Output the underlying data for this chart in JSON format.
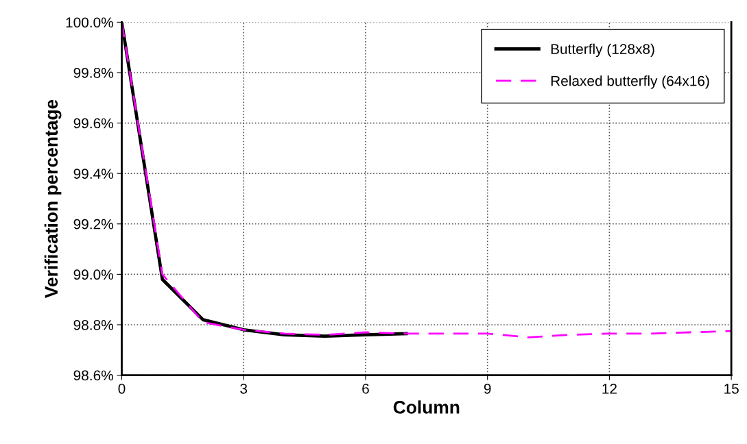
{
  "chart_data": {
    "type": "line",
    "xlabel": "Column",
    "ylabel": "Verification percentage",
    "series": [
      {
        "name": "Butterfly (128x8)",
        "color": "#000000",
        "line_style": "solid",
        "x": [
          0,
          1,
          2,
          3,
          4,
          5,
          6,
          7
        ],
        "values": [
          100.0,
          98.98,
          98.82,
          98.78,
          98.76,
          98.755,
          98.76,
          98.765
        ]
      },
      {
        "name": "Relaxed butterfly (64x16)",
        "color": "#ff00ff",
        "line_style": "dashed",
        "x": [
          0,
          1,
          2,
          3,
          4,
          5,
          6,
          7,
          8,
          9,
          10,
          11,
          12,
          13,
          14,
          15
        ],
        "values": [
          100.0,
          99.0,
          98.81,
          98.78,
          98.765,
          98.76,
          98.77,
          98.765,
          98.765,
          98.765,
          98.75,
          98.76,
          98.765,
          98.765,
          98.77,
          98.775
        ]
      }
    ],
    "xlim": [
      0,
      15
    ],
    "xticks": [
      0,
      3,
      6,
      9,
      12,
      15
    ],
    "ylim": [
      98.6,
      100.0
    ],
    "yticks": [
      {
        "value": 98.6,
        "label": "98.6%"
      },
      {
        "value": 98.8,
        "label": "98.8%"
      },
      {
        "value": 99.0,
        "label": "99.0%"
      },
      {
        "value": 99.2,
        "label": "99.2%"
      },
      {
        "value": 99.4,
        "label": "99.4%"
      },
      {
        "value": 99.6,
        "label": "99.6%"
      },
      {
        "value": 99.8,
        "label": "99.8%"
      },
      {
        "value": 100.0,
        "label": "100.0%"
      }
    ],
    "grid": true,
    "legend": "top right",
    "marker": "none"
  }
}
